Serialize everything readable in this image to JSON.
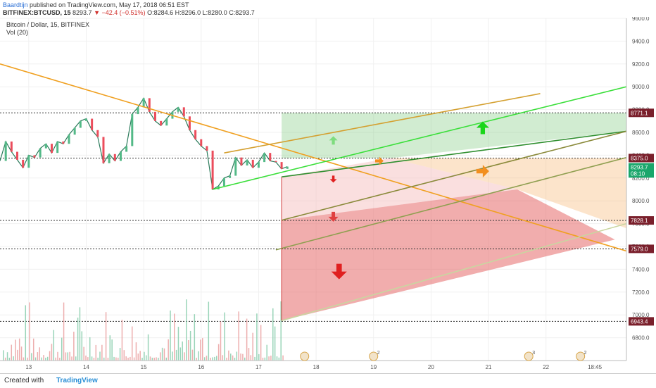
{
  "header": {
    "author": "Baardtijn",
    "published": "published on TradingView.com, May 17, 2018 06:51 EST",
    "symbol": "BITFINEX:BTCUSD, 15",
    "last": "8293.7",
    "change_arrow": "▼",
    "change": "−42.4 (−0.51%)",
    "o": "O:8284.6",
    "h": "H:8296.0",
    "l": "L:8280.0",
    "c": "C:8293.7"
  },
  "legend": {
    "title": "Bitcoin / Dollar, 15, BITFINEX",
    "vol": "Vol (20)"
  },
  "footer": {
    "created": "Created with",
    "brand": "TradingView"
  },
  "chart_data": {
    "type": "line",
    "title": "Bitcoin / Dollar, 15, BITFINEX",
    "ylim": [
      6600,
      9600
    ],
    "y_ticks": [
      "9600.0",
      "9400.0",
      "9200.0",
      "9000.0",
      "8800.0",
      "8600.0",
      "8400.0",
      "8200.0",
      "8000.0",
      "7800.0",
      "7600.0",
      "7400.0",
      "7200.0",
      "7000.0",
      "6800.0"
    ],
    "x_ticks": [
      "13",
      "14",
      "15",
      "16",
      "17",
      "18",
      "19",
      "20",
      "21",
      "22",
      "18:45"
    ],
    "price_labels": [
      {
        "value": 8771.1,
        "label": "8771.1",
        "color": "#7a1f2b"
      },
      {
        "value": 8375.0,
        "label": "8375.0",
        "color": "#7a1f2b"
      },
      {
        "value": 8293.7,
        "label": "8293.7",
        "color": "#1aa66b"
      },
      {
        "value": 8240,
        "label": "08:10",
        "color": "#1aa66b"
      },
      {
        "value": 7828.1,
        "label": "7828.1",
        "color": "#7a1f2b"
      },
      {
        "value": 7579.0,
        "label": "7579.0",
        "color": "#7a1f2b"
      },
      {
        "value": 6943.4,
        "label": "6943.4",
        "color": "#7a1f2b"
      }
    ],
    "horizontal_levels": [
      8771.1,
      8375.0,
      7828.1,
      7579.0,
      6943.4
    ],
    "price_series": [
      [
        12.5,
        8350
      ],
      [
        12.6,
        8520
      ],
      [
        12.7,
        8430
      ],
      [
        12.8,
        8360
      ],
      [
        12.9,
        8290
      ],
      [
        13.0,
        8400
      ],
      [
        13.1,
        8380
      ],
      [
        13.2,
        8460
      ],
      [
        13.3,
        8500
      ],
      [
        13.4,
        8420
      ],
      [
        13.5,
        8520
      ],
      [
        13.6,
        8500
      ],
      [
        13.7,
        8580
      ],
      [
        13.8,
        8640
      ],
      [
        13.9,
        8700
      ],
      [
        14.0,
        8720
      ],
      [
        14.1,
        8620
      ],
      [
        14.2,
        8560
      ],
      [
        14.3,
        8330
      ],
      [
        14.4,
        8410
      ],
      [
        14.5,
        8350
      ],
      [
        14.6,
        8430
      ],
      [
        14.7,
        8480
      ],
      [
        14.8,
        8760
      ],
      [
        14.9,
        8820
      ],
      [
        15.0,
        8900
      ],
      [
        15.1,
        8780
      ],
      [
        15.2,
        8700
      ],
      [
        15.3,
        8660
      ],
      [
        15.4,
        8720
      ],
      [
        15.5,
        8780
      ],
      [
        15.6,
        8820
      ],
      [
        15.7,
        8740
      ],
      [
        15.8,
        8620
      ],
      [
        15.9,
        8540
      ],
      [
        16.0,
        8480
      ],
      [
        16.1,
        8440
      ],
      [
        16.2,
        8100
      ],
      [
        16.3,
        8130
      ],
      [
        16.4,
        8200
      ],
      [
        16.5,
        8220
      ],
      [
        16.6,
        8380
      ],
      [
        16.7,
        8310
      ],
      [
        16.8,
        8360
      ],
      [
        16.9,
        8290
      ],
      [
        17.0,
        8340
      ],
      [
        17.1,
        8420
      ],
      [
        17.2,
        8350
      ],
      [
        17.3,
        8340
      ],
      [
        17.4,
        8280
      ],
      [
        17.5,
        8300
      ]
    ],
    "trendlines": [
      {
        "name": "descending-resistance",
        "color": "#f0a020",
        "from": [
          12.5,
          9200
        ],
        "to": [
          23.4,
          7560
        ]
      },
      {
        "name": "upper-channel-orange",
        "color": "#d4a030",
        "from": [
          16.4,
          8420
        ],
        "to": [
          21.9,
          8940
        ]
      },
      {
        "name": "lower-support-green",
        "color": "#3adf3a",
        "from": [
          16.2,
          8100
        ],
        "to": [
          23.4,
          9000
        ]
      },
      {
        "name": "mid-channel-green",
        "color": "#2f8f2f",
        "from": [
          17.4,
          8210
        ],
        "to": [
          23.4,
          8610
        ]
      },
      {
        "name": "mid-low-olive",
        "color": "#8a8a3a",
        "from": [
          17.4,
          7830
        ],
        "to": [
          23.4,
          8610
        ]
      },
      {
        "name": "lower-olive",
        "color": "#8f9f50",
        "from": [
          17.3,
          7570
        ],
        "to": [
          23.4,
          8380
        ]
      },
      {
        "name": "bottom-support",
        "color": "#c9d6a0",
        "from": [
          17.4,
          6950
        ],
        "to": [
          23.4,
          7800
        ]
      }
    ],
    "zones": [
      {
        "name": "bullish-zone",
        "color": "#7cc97c",
        "opacity": 0.35,
        "points": [
          [
            17.4,
            8771.1
          ],
          [
            23.4,
            8771.1
          ],
          [
            23.4,
            8610
          ],
          [
            19.3,
            8375
          ],
          [
            17.4,
            8375
          ]
        ]
      },
      {
        "name": "neutral-zone",
        "color": "#f6b26b",
        "opacity": 0.35,
        "points": [
          [
            19.3,
            8375
          ],
          [
            23.4,
            8375
          ],
          [
            23.4,
            7760
          ],
          [
            21.5,
            8100
          ]
        ]
      },
      {
        "name": "bearish-light-zone",
        "color": "#f4b8b8",
        "opacity": 0.45,
        "points": [
          [
            17.4,
            8210
          ],
          [
            19.3,
            8375
          ],
          [
            21.5,
            8100
          ],
          [
            17.4,
            7830
          ]
        ]
      },
      {
        "name": "bearish-zone",
        "color": "#e56a6a",
        "opacity": 0.55,
        "points": [
          [
            17.4,
            7830
          ],
          [
            21.5,
            8100
          ],
          [
            23.2,
            7660
          ],
          [
            17.4,
            6950
          ]
        ]
      }
    ],
    "arrows": [
      {
        "name": "up-arrow-small",
        "dir": "up",
        "color": "#7fdc7f",
        "at": [
          18.3,
          8530
        ],
        "size": 12
      },
      {
        "name": "up-arrow-large",
        "dir": "up",
        "color": "#19d619",
        "at": [
          20.9,
          8640
        ],
        "size": 18
      },
      {
        "name": "right-arrow-small",
        "dir": "right",
        "color": "#f28f1f",
        "at": [
          19.1,
          8350
        ],
        "size": 12
      },
      {
        "name": "right-arrow-large",
        "dir": "right",
        "color": "#f28f1f",
        "at": [
          20.9,
          8260
        ],
        "size": 18
      },
      {
        "name": "down-arrow-small",
        "dir": "down",
        "color": "#e02020",
        "at": [
          18.3,
          8190
        ],
        "size": 10
      },
      {
        "name": "down-arrow-medium",
        "dir": "down",
        "color": "#e04040",
        "at": [
          18.3,
          7860
        ],
        "size": 14
      },
      {
        "name": "down-arrow-large",
        "dir": "down",
        "color": "#e02020",
        "at": [
          18.4,
          7380
        ],
        "size": 22
      }
    ],
    "event_markers": [
      {
        "x": 17.8,
        "label": ""
      },
      {
        "x": 19.0,
        "label": "2"
      },
      {
        "x": 21.7,
        "label": "3"
      },
      {
        "x": 22.6,
        "label": "2"
      }
    ]
  }
}
